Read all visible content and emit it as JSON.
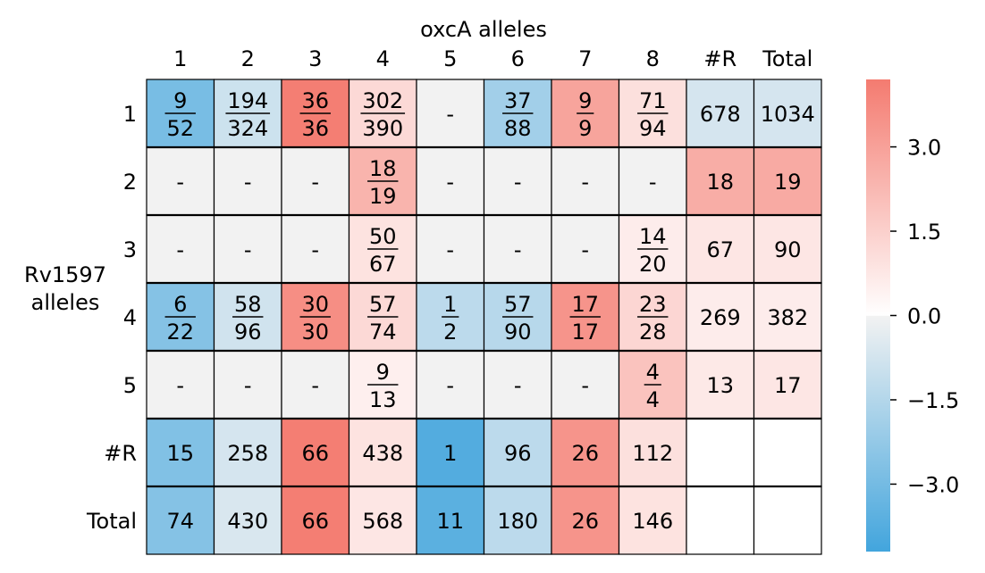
{
  "chart_data": {
    "type": "heatmap",
    "title": "oxcA alleles",
    "ylabel_lines": [
      "Rv1597",
      "alleles"
    ],
    "col_labels": [
      "1",
      "2",
      "3",
      "4",
      "5",
      "6",
      "7",
      "8",
      "#R",
      "Total"
    ],
    "row_labels": [
      "1",
      "2",
      "3",
      "4",
      "5",
      "#R",
      "Total"
    ],
    "cells": [
      [
        {
          "num": "9",
          "den": "52",
          "v": -2.9
        },
        {
          "num": "194",
          "den": "324",
          "v": -0.9
        },
        {
          "num": "36",
          "den": "36",
          "v": 4.1
        },
        {
          "num": "302",
          "den": "390",
          "v": 1.2
        },
        {
          "text": "-",
          "v": null
        },
        {
          "num": "37",
          "den": "88",
          "v": -1.9
        },
        {
          "num": "9",
          "den": "9",
          "v": 2.9
        },
        {
          "num": "71",
          "den": "94",
          "v": 1.0
        },
        {
          "text": "678",
          "v": -0.7
        },
        {
          "text": "1034",
          "v": -0.7
        }
      ],
      [
        {
          "text": "-",
          "v": null
        },
        {
          "text": "-",
          "v": null
        },
        {
          "text": "-",
          "v": null
        },
        {
          "num": "18",
          "den": "19",
          "v": 2.4
        },
        {
          "text": "-",
          "v": null
        },
        {
          "text": "-",
          "v": null
        },
        {
          "text": "-",
          "v": null
        },
        {
          "text": "-",
          "v": null
        },
        {
          "text": "18",
          "v": 2.6
        },
        {
          "text": "19",
          "v": 2.7
        }
      ],
      [
        {
          "text": "-",
          "v": null
        },
        {
          "text": "-",
          "v": null
        },
        {
          "text": "-",
          "v": null
        },
        {
          "num": "50",
          "den": "67",
          "v": 0.9
        },
        {
          "text": "-",
          "v": null
        },
        {
          "text": "-",
          "v": null
        },
        {
          "text": "-",
          "v": null
        },
        {
          "num": "14",
          "den": "20",
          "v": 0.6
        },
        {
          "text": "67",
          "v": 0.8
        },
        {
          "text": "90",
          "v": 0.8
        }
      ],
      [
        {
          "num": "6",
          "den": "22",
          "v": -2.6
        },
        {
          "num": "58",
          "den": "96",
          "v": -0.8
        },
        {
          "num": "30",
          "den": "30",
          "v": 3.6
        },
        {
          "num": "57",
          "den": "74",
          "v": 1.2
        },
        {
          "num": "1",
          "den": "2",
          "v": -1.3
        },
        {
          "num": "57",
          "den": "90",
          "v": -1.4
        },
        {
          "num": "17",
          "den": "17",
          "v": 3.4
        },
        {
          "num": "23",
          "den": "28",
          "v": 1.3
        },
        {
          "text": "269",
          "v": 0.6
        },
        {
          "text": "382",
          "v": 0.6
        }
      ],
      [
        {
          "text": "-",
          "v": null
        },
        {
          "text": "-",
          "v": null
        },
        {
          "text": "-",
          "v": null
        },
        {
          "num": "9",
          "den": "13",
          "v": 0.5
        },
        {
          "text": "-",
          "v": null
        },
        {
          "text": "-",
          "v": null
        },
        {
          "text": "-",
          "v": null
        },
        {
          "num": "4",
          "den": "4",
          "v": 1.9
        },
        {
          "text": "13",
          "v": 0.7
        },
        {
          "text": "17",
          "v": 0.8
        }
      ],
      [
        {
          "text": "15",
          "v": -2.7
        },
        {
          "text": "258",
          "v": -0.7
        },
        {
          "text": "66",
          "v": 4.1
        },
        {
          "text": "438",
          "v": 0.9
        },
        {
          "text": "1",
          "v": -3.8
        },
        {
          "text": "96",
          "v": -1.3
        },
        {
          "text": "26",
          "v": 3.4
        },
        {
          "text": "112",
          "v": 1.0
        },
        {
          "text": "",
          "v": "blank"
        },
        {
          "text": "",
          "v": "blank"
        }
      ],
      [
        {
          "text": "74",
          "v": -2.6
        },
        {
          "text": "430",
          "v": -0.6
        },
        {
          "text": "66",
          "v": 4.1
        },
        {
          "text": "568",
          "v": 0.8
        },
        {
          "text": "11",
          "v": -3.6
        },
        {
          "text": "180",
          "v": -1.3
        },
        {
          "text": "26",
          "v": 3.4
        },
        {
          "text": "146",
          "v": 0.9
        },
        {
          "text": "",
          "v": "blank"
        },
        {
          "text": "",
          "v": "blank"
        }
      ]
    ],
    "colorbar": {
      "ticks": [
        3.0,
        1.5,
        0.0,
        -1.5,
        -3.0
      ],
      "tick_labels": [
        "3.0",
        "1.5",
        "0.0",
        "−1.5",
        "−3.0"
      ],
      "vmin": -4.2,
      "vmax": 4.2
    },
    "colors": {
      "negative_end": "#42a5dd",
      "neutral_neg": "#f2f2f2",
      "neutral_pos": "#ffffff",
      "positive_end": "#f47b70",
      "missing": "#f2f2f2",
      "blank": "#ffffff",
      "grid": "#000000"
    }
  }
}
